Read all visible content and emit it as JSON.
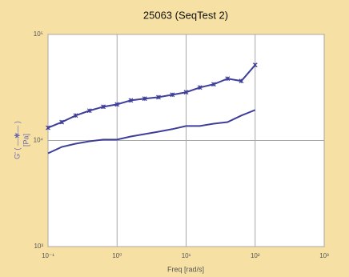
{
  "chart_data": {
    "type": "line",
    "title": "25063 (SeqTest 2)",
    "x_label": "Freq [rad/s]",
    "y_label": "G' ( —✱— )",
    "y_label_unit": "[Pa]",
    "x": [
      0.1,
      0.158,
      0.251,
      0.398,
      0.631,
      1,
      1.58,
      2.51,
      3.98,
      6.31,
      10,
      15.8,
      25.1,
      39.8,
      63.1,
      100
    ],
    "series": [
      {
        "color": "#3f3f9a",
        "marker": "star",
        "values": [
          13200,
          14900,
          17200,
          19100,
          20800,
          21900,
          23900,
          24800,
          25600,
          27000,
          28500,
          31600,
          33900,
          38300,
          36400,
          51500
        ]
      },
      {
        "color": "#3f3f9a",
        "marker": "none",
        "values": [
          7570,
          8690,
          9330,
          9830,
          10200,
          10200,
          10900,
          11500,
          12100,
          12800,
          13700,
          13700,
          14400,
          14900,
          17200,
          19400
        ]
      }
    ],
    "xscale": "log",
    "yscale": "log",
    "xlim": [
      0.1,
      1000
    ],
    "ylim": [
      1000,
      100000
    ],
    "xticks": [
      {
        "value": 0.1,
        "label": "10⁻¹"
      },
      {
        "value": 1,
        "label": "10⁰"
      },
      {
        "value": 10,
        "label": "10¹"
      },
      {
        "value": 100,
        "label": "10²"
      },
      {
        "value": 1000,
        "label": "10³"
      }
    ],
    "yticks": [
      {
        "value": 1000,
        "label": "10³"
      },
      {
        "value": 10000,
        "label": "10⁴"
      },
      {
        "value": 100000,
        "label": "10⁵"
      }
    ],
    "grid": true
  }
}
